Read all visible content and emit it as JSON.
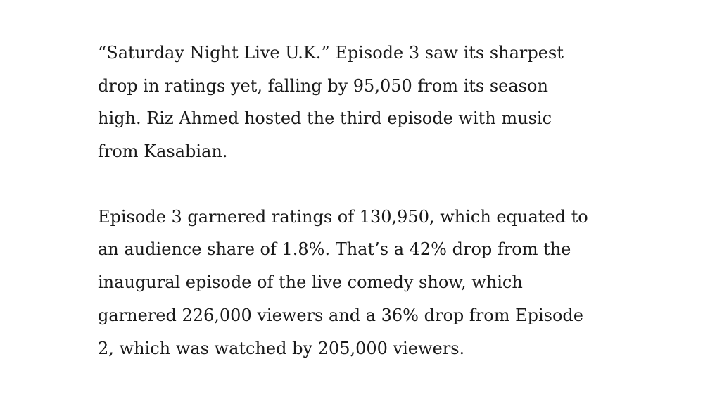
{
  "paragraphs": [
    {
      "lines": [
        "“Saturday Night Live U.K.” Episode 3 saw its sharpest",
        "drop in ratings yet, falling by 95,050 from its season",
        "high. Riz Ahmed hosted the third episode with music",
        "from Kasabian."
      ]
    },
    {
      "lines": [
        "Episode 3 garnered ratings of 130,950, which equated to",
        "an audience share of 1.8%. That’s a 42% drop from the",
        "inaugural episode of the live comedy show, which",
        "garnered 226,000 viewers and a 36% drop from Episode",
        "2, which was watched by 205,000 viewers."
      ]
    }
  ]
}
